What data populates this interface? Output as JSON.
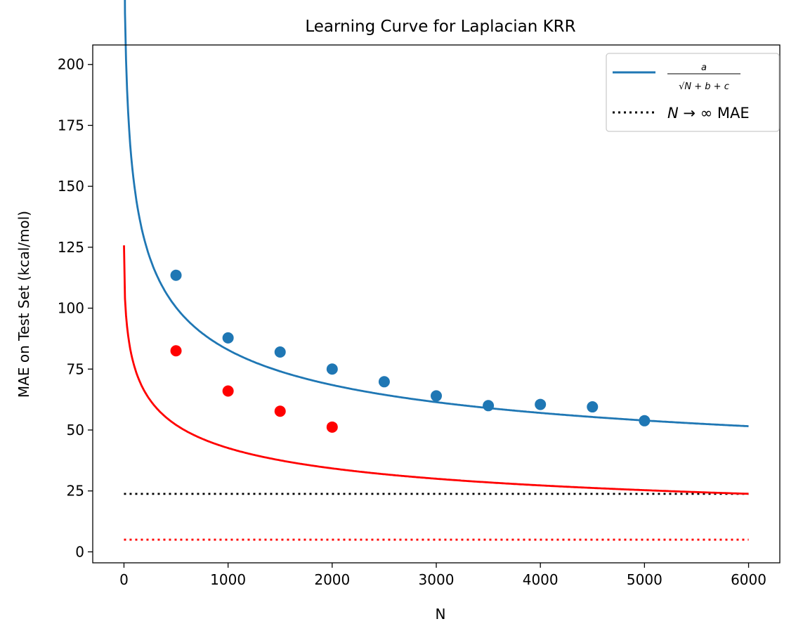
{
  "chart_data": {
    "type": "line",
    "title": "Learning Curve for Laplacian KRR",
    "xlabel": "N",
    "ylabel": "MAE on Test Set (kcal/mol)",
    "xlim": [
      -300,
      6300
    ],
    "ylim": [
      -4.5,
      208
    ],
    "xticks": [
      0,
      1000,
      2000,
      3000,
      4000,
      5000,
      6000
    ],
    "yticks": [
      0,
      25,
      50,
      75,
      100,
      125,
      150,
      175,
      200
    ],
    "grid": false,
    "legend_position": "top-right",
    "legend": [
      {
        "label_num": "a",
        "label_den": "√N + b + c",
        "style": "solid",
        "color": "#1f77b4"
      },
      {
        "label_math": "N → ∞",
        "label_text": " MAE",
        "style": "dotted",
        "color": "#000000"
      }
    ],
    "series": [
      {
        "color": "#1f77b4",
        "points_x": [
          500,
          1000,
          1500,
          2000,
          2500,
          3000,
          3500,
          4000,
          4500,
          5000
        ],
        "points_y": [
          113.5,
          87.8,
          82.0,
          75.0,
          69.8,
          64.0,
          60.0,
          60.5,
          59.5,
          53.8
        ],
        "fit": {
          "a": 2400,
          "b": 9.0,
          "c": 23.8,
          "x_start": 0,
          "x_end": 6000
        },
        "asymptote": 23.8
      },
      {
        "color": "#ff0000",
        "points_x": [
          500,
          1000,
          1500,
          2000
        ],
        "points_y": [
          82.5,
          66.0,
          57.7,
          51.2
        ],
        "fit": {
          "a": 1727,
          "b": 14.3,
          "c": 5.0,
          "x_start": 0,
          "x_end": 6000
        },
        "asymptote": 5.0
      }
    ]
  }
}
